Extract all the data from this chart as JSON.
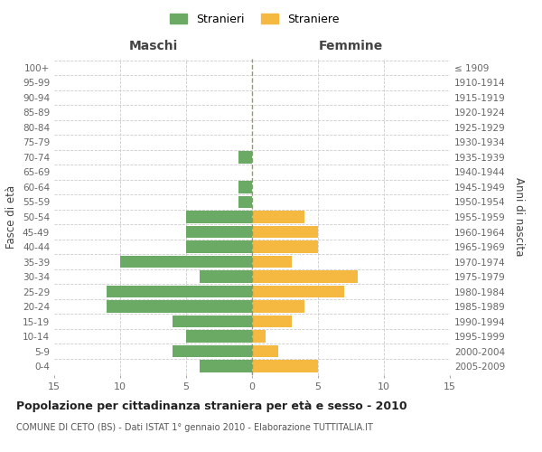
{
  "age_groups": [
    "0-4",
    "5-9",
    "10-14",
    "15-19",
    "20-24",
    "25-29",
    "30-34",
    "35-39",
    "40-44",
    "45-49",
    "50-54",
    "55-59",
    "60-64",
    "65-69",
    "70-74",
    "75-79",
    "80-84",
    "85-89",
    "90-94",
    "95-99",
    "100+"
  ],
  "birth_years": [
    "2005-2009",
    "2000-2004",
    "1995-1999",
    "1990-1994",
    "1985-1989",
    "1980-1984",
    "1975-1979",
    "1970-1974",
    "1965-1969",
    "1960-1964",
    "1955-1959",
    "1950-1954",
    "1945-1949",
    "1940-1944",
    "1935-1939",
    "1930-1934",
    "1925-1929",
    "1920-1924",
    "1915-1919",
    "1910-1914",
    "≤ 1909"
  ],
  "males": [
    4,
    6,
    5,
    6,
    11,
    11,
    4,
    10,
    5,
    5,
    5,
    1,
    1,
    0,
    1,
    0,
    0,
    0,
    0,
    0,
    0
  ],
  "females": [
    5,
    2,
    1,
    3,
    4,
    7,
    8,
    3,
    5,
    5,
    4,
    0,
    0,
    0,
    0,
    0,
    0,
    0,
    0,
    0,
    0
  ],
  "male_color": "#6aaa64",
  "female_color": "#f5b942",
  "title": "Popolazione per cittadinanza straniera per età e sesso - 2010",
  "subtitle": "COMUNE DI CETO (BS) - Dati ISTAT 1° gennaio 2010 - Elaborazione TUTTITALIA.IT",
  "xlabel_left": "Maschi",
  "xlabel_right": "Femmine",
  "ylabel_left": "Fasce di età",
  "ylabel_right": "Anni di nascita",
  "legend_male": "Stranieri",
  "legend_female": "Straniere",
  "xlim": 15,
  "background_color": "#ffffff",
  "grid_color": "#cccccc",
  "bar_height": 0.82
}
